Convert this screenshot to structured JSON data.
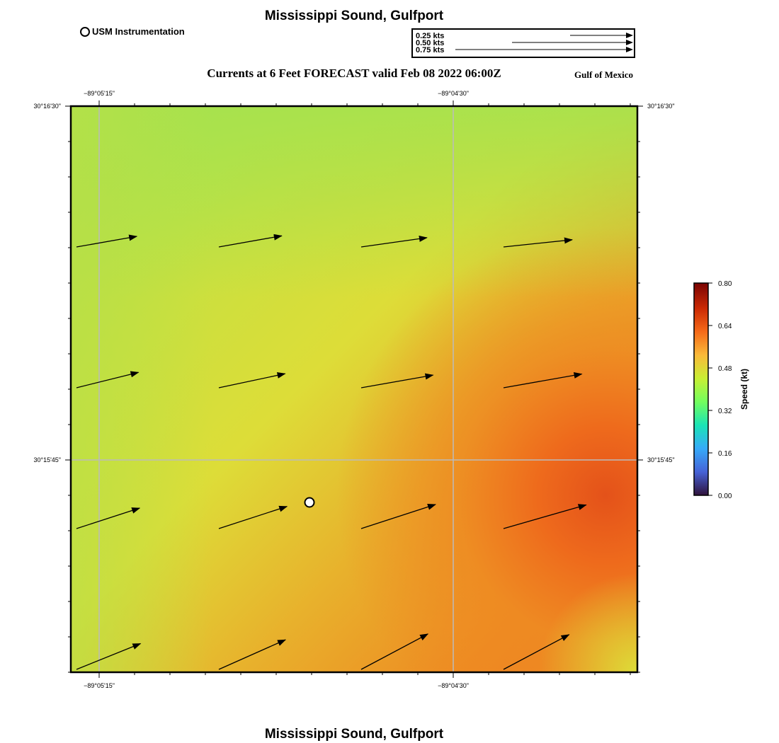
{
  "titles": {
    "top": "Mississippi Sound, Gulfport",
    "subtitle": "Currents at 6 Feet FORECAST valid Feb 08 2022 06:00Z",
    "region": "Gulf of Mexico",
    "bottom": "Mississippi Sound, Gulfport"
  },
  "legend": {
    "usm_label": "USM Instrumentation"
  },
  "vector_scale": {
    "labels": [
      "0.25 kts",
      "0.50 kts",
      "0.75 kts"
    ],
    "speeds_kt": [
      0.25,
      0.5,
      0.75
    ]
  },
  "axes": {
    "x_top_ticks": [
      "−89°05'15\"",
      "−89°04'30\""
    ],
    "x_bottom_ticks": [
      "−89°05'15\"",
      "−89°04'30\""
    ],
    "y_left_ticks": [
      "30°16'30\"",
      "30°15'45\""
    ],
    "y_right_ticks": [
      "30°16'30\"",
      "30°15'45\""
    ]
  },
  "colorbar": {
    "label": "Speed (kt)",
    "ticks": [
      "0.80",
      "0.64",
      "0.48",
      "0.32",
      "0.16",
      "0.00"
    ],
    "min": 0.0,
    "max": 0.8,
    "colormap": [
      "#30123b",
      "#4662d7",
      "#36aaf9",
      "#1ae4b6",
      "#72fe5e",
      "#c8ef34",
      "#faba39",
      "#f66b19",
      "#cb2a04",
      "#7a0403"
    ]
  },
  "map": {
    "speed_field_colors": {
      "low": "#a6e24e",
      "mid": "#dddd38",
      "high": "#ee8a22",
      "max": "#e4521a"
    },
    "station_marker": "USM Instrumentation",
    "arrow_color": "#000000"
  },
  "chart_data": {
    "type": "vector-field",
    "description_units": "knots",
    "rows": [
      [
        {
          "speed": 0.47,
          "dir_deg": 80
        },
        {
          "speed": 0.49,
          "dir_deg": 80
        },
        {
          "speed": 0.51,
          "dir_deg": 82
        },
        {
          "speed": 0.53,
          "dir_deg": 84
        }
      ],
      [
        {
          "speed": 0.49,
          "dir_deg": 76
        },
        {
          "speed": 0.52,
          "dir_deg": 78
        },
        {
          "speed": 0.56,
          "dir_deg": 80
        },
        {
          "speed": 0.61,
          "dir_deg": 80
        }
      ],
      [
        {
          "speed": 0.51,
          "dir_deg": 72
        },
        {
          "speed": 0.55,
          "dir_deg": 72
        },
        {
          "speed": 0.6,
          "dir_deg": 72
        },
        {
          "speed": 0.66,
          "dir_deg": 74
        }
      ],
      [
        {
          "speed": 0.53,
          "dir_deg": 68
        },
        {
          "speed": 0.56,
          "dir_deg": 66
        },
        {
          "speed": 0.58,
          "dir_deg": 62
        },
        {
          "speed": 0.57,
          "dir_deg": 62
        }
      ]
    ],
    "colorbar_range": [
      0.0,
      0.8
    ]
  }
}
